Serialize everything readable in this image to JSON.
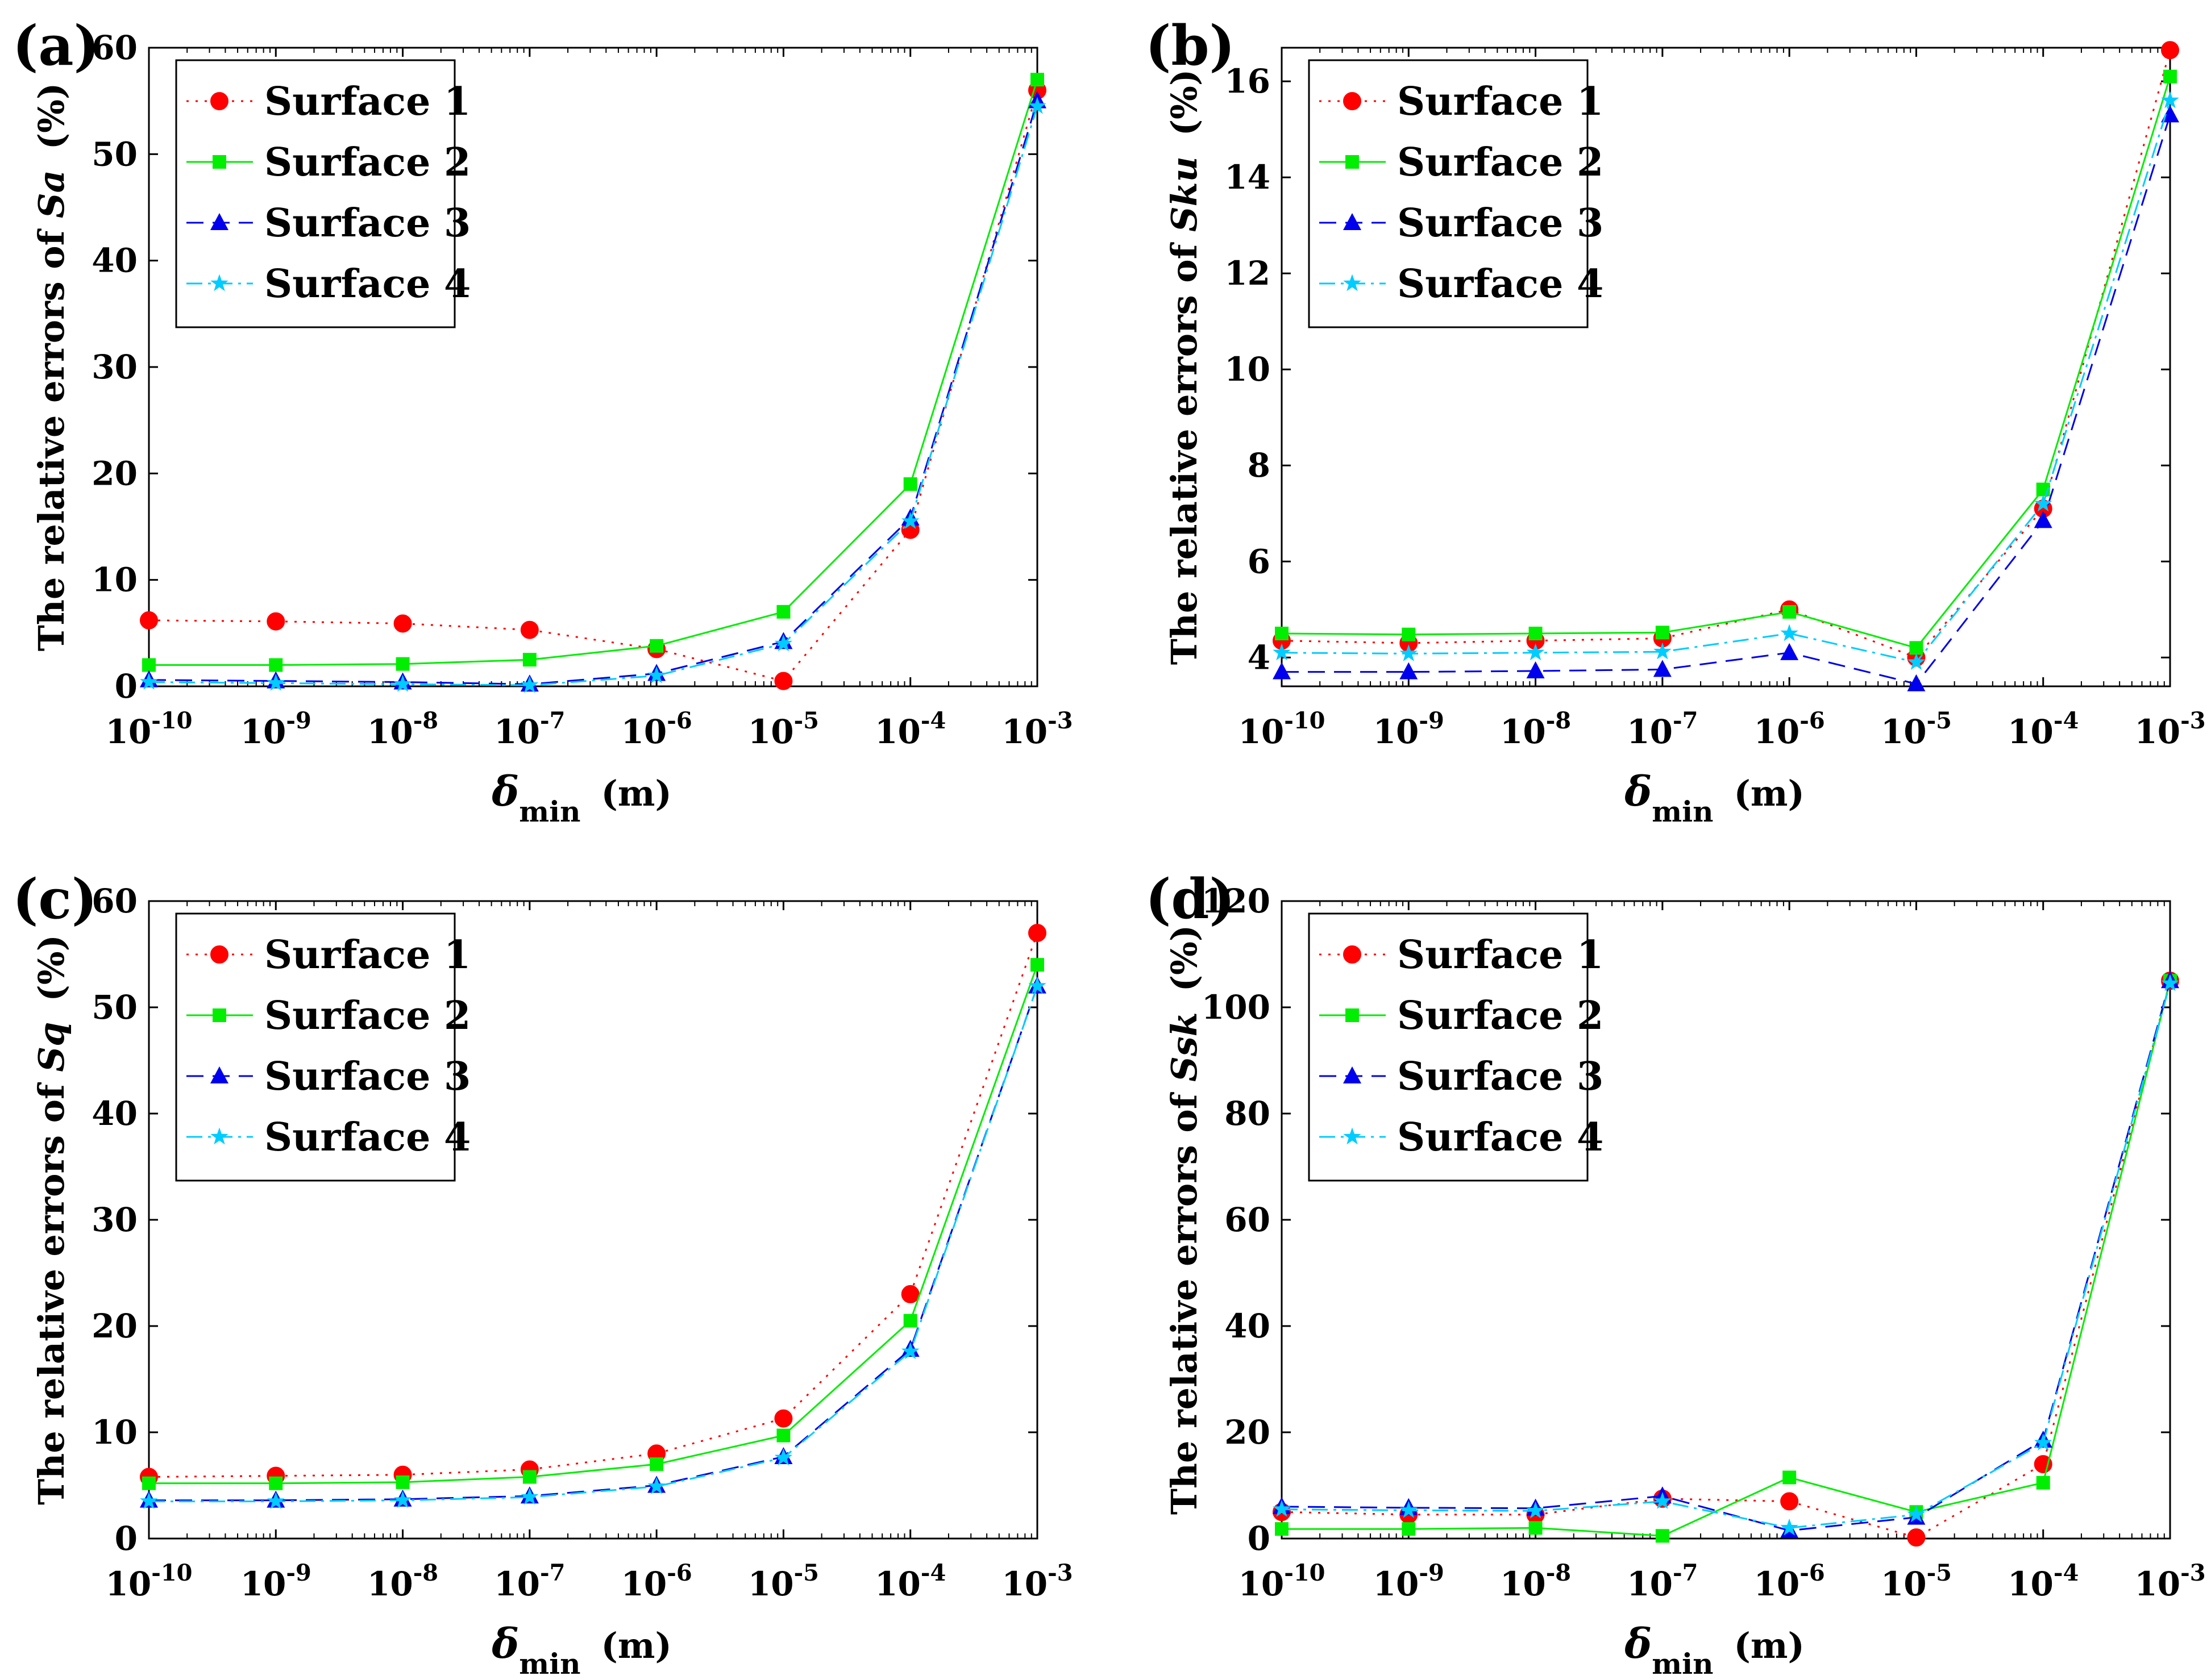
{
  "figure": {
    "description_free": true
  },
  "chart_data": [
    {
      "panel_label": "(a)",
      "type": "line",
      "ylabel_prefix": "The relative errors of ",
      "ylabel_var": "Sa",
      "ylabel_unit": "(%)",
      "xlabel_symbol": "δ",
      "xlabel_sub": "min",
      "xlabel_unit": "(m)",
      "x_ticks": [
        {
          "base": "10",
          "exp": "-10"
        },
        {
          "base": "10",
          "exp": "-9"
        },
        {
          "base": "10",
          "exp": "-8"
        },
        {
          "base": "10",
          "exp": "-7"
        },
        {
          "base": "10",
          "exp": "-6"
        },
        {
          "base": "10",
          "exp": "-5"
        },
        {
          "base": "10",
          "exp": "-4"
        },
        {
          "base": "10",
          "exp": "-3"
        }
      ],
      "xscale": "log",
      "x": [
        -10,
        -9,
        -8,
        -7,
        -6,
        -5,
        -4,
        -3
      ],
      "ylim": [
        0,
        60
      ],
      "y_ticks": [
        "0",
        "10",
        "20",
        "30",
        "40",
        "50",
        "60"
      ],
      "legend_position": "top-left",
      "series": [
        {
          "name": "Surface 1",
          "values": [
            6.2,
            6.1,
            5.9,
            5.3,
            3.5,
            0.5,
            14.7,
            56.0
          ]
        },
        {
          "name": "Surface 2",
          "values": [
            2.0,
            2.0,
            2.1,
            2.5,
            3.8,
            7.0,
            19.0,
            57.0
          ]
        },
        {
          "name": "Surface 3",
          "values": [
            0.6,
            0.5,
            0.4,
            0.2,
            1.2,
            4.2,
            15.8,
            55.0
          ]
        },
        {
          "name": "Surface 4",
          "values": [
            0.4,
            0.3,
            0.2,
            0.1,
            1.0,
            4.0,
            15.5,
            54.5
          ]
        }
      ]
    },
    {
      "panel_label": "(b)",
      "type": "line",
      "ylabel_prefix": "The relative errors of ",
      "ylabel_var": "Sku",
      "ylabel_unit": "(%)",
      "xlabel_symbol": "δ",
      "xlabel_sub": "min",
      "xlabel_unit": "(m)",
      "x_ticks": [
        {
          "base": "10",
          "exp": "-10"
        },
        {
          "base": "10",
          "exp": "-9"
        },
        {
          "base": "10",
          "exp": "-8"
        },
        {
          "base": "10",
          "exp": "-7"
        },
        {
          "base": "10",
          "exp": "-6"
        },
        {
          "base": "10",
          "exp": "-5"
        },
        {
          "base": "10",
          "exp": "-4"
        },
        {
          "base": "10",
          "exp": "-3"
        }
      ],
      "xscale": "log",
      "x": [
        -10,
        -9,
        -8,
        -7,
        -6,
        -5,
        -4,
        -3
      ],
      "ylim": [
        3.4,
        16.7
      ],
      "y_ticks": [
        "4",
        "6",
        "8",
        "10",
        "12",
        "14",
        "16"
      ],
      "legend_position": "top-left",
      "series": [
        {
          "name": "Surface 1",
          "values": [
            4.35,
            4.3,
            4.35,
            4.4,
            5.0,
            4.0,
            7.1,
            16.65
          ]
        },
        {
          "name": "Surface 2",
          "values": [
            4.5,
            4.48,
            4.5,
            4.52,
            4.95,
            4.2,
            7.5,
            16.1
          ]
        },
        {
          "name": "Surface 3",
          "values": [
            3.7,
            3.7,
            3.72,
            3.75,
            4.1,
            3.45,
            6.85,
            15.3
          ]
        },
        {
          "name": "Surface 4",
          "values": [
            4.1,
            4.08,
            4.1,
            4.12,
            4.5,
            3.9,
            7.2,
            15.6
          ]
        }
      ]
    },
    {
      "panel_label": "(c)",
      "type": "line",
      "ylabel_prefix": "The relative errors of ",
      "ylabel_var": "Sq",
      "ylabel_unit": "(%)",
      "xlabel_symbol": "δ",
      "xlabel_sub": "min",
      "xlabel_unit": "(m)",
      "x_ticks": [
        {
          "base": "10",
          "exp": "-10"
        },
        {
          "base": "10",
          "exp": "-9"
        },
        {
          "base": "10",
          "exp": "-8"
        },
        {
          "base": "10",
          "exp": "-7"
        },
        {
          "base": "10",
          "exp": "-6"
        },
        {
          "base": "10",
          "exp": "-5"
        },
        {
          "base": "10",
          "exp": "-4"
        },
        {
          "base": "10",
          "exp": "-3"
        }
      ],
      "xscale": "log",
      "x": [
        -10,
        -9,
        -8,
        -7,
        -6,
        -5,
        -4,
        -3
      ],
      "ylim": [
        0,
        60
      ],
      "y_ticks": [
        "0",
        "10",
        "20",
        "30",
        "40",
        "50",
        "60"
      ],
      "legend_position": "top-left",
      "series": [
        {
          "name": "Surface 1",
          "values": [
            5.8,
            5.9,
            6.0,
            6.5,
            8.0,
            11.3,
            23.0,
            57.0
          ]
        },
        {
          "name": "Surface 2",
          "values": [
            5.2,
            5.2,
            5.3,
            5.8,
            7.0,
            9.7,
            20.5,
            54.0
          ]
        },
        {
          "name": "Surface 3",
          "values": [
            3.6,
            3.6,
            3.7,
            4.0,
            5.0,
            7.7,
            17.8,
            52.0
          ]
        },
        {
          "name": "Surface 4",
          "values": [
            3.5,
            3.5,
            3.6,
            3.9,
            4.9,
            7.6,
            17.6,
            52.0
          ]
        }
      ]
    },
    {
      "panel_label": "(d)",
      "type": "line",
      "ylabel_prefix": "The relative errors of ",
      "ylabel_var": "Ssk",
      "ylabel_unit": "(%)",
      "xlabel_symbol": "δ",
      "xlabel_sub": "min",
      "xlabel_unit": "(m)",
      "x_ticks": [
        {
          "base": "10",
          "exp": "-10"
        },
        {
          "base": "10",
          "exp": "-9"
        },
        {
          "base": "10",
          "exp": "-8"
        },
        {
          "base": "10",
          "exp": "-7"
        },
        {
          "base": "10",
          "exp": "-6"
        },
        {
          "base": "10",
          "exp": "-5"
        },
        {
          "base": "10",
          "exp": "-4"
        },
        {
          "base": "10",
          "exp": "-3"
        }
      ],
      "xscale": "log",
      "x": [
        -10,
        -9,
        -8,
        -7,
        -6,
        -5,
        -4,
        -3
      ],
      "ylim": [
        0,
        120
      ],
      "y_ticks": [
        "0",
        "20",
        "40",
        "60",
        "80",
        "100",
        "120"
      ],
      "legend_position": "top-left",
      "series": [
        {
          "name": "Surface 1",
          "values": [
            5.0,
            4.5,
            4.5,
            7.5,
            7.0,
            0.2,
            14.0,
            105.0
          ]
        },
        {
          "name": "Surface 2",
          "values": [
            1.8,
            1.8,
            2.0,
            0.5,
            11.5,
            5.0,
            10.5,
            105.0
          ]
        },
        {
          "name": "Surface 3",
          "values": [
            6.0,
            5.8,
            5.7,
            8.0,
            1.5,
            4.0,
            18.5,
            105.0
          ]
        },
        {
          "name": "Surface 4",
          "values": [
            5.5,
            5.3,
            5.2,
            7.0,
            2.0,
            4.5,
            18.0,
            104.5
          ]
        }
      ]
    }
  ],
  "styles": {
    "series": [
      {
        "color": "#ff0000",
        "dash": "4 12",
        "marker": "circle"
      },
      {
        "color": "#00ee00",
        "dash": "",
        "marker": "square"
      },
      {
        "color": "#0000ee",
        "dash": "30 16",
        "marker": "triangle"
      },
      {
        "color": "#00ccff",
        "dash": "28 10 5 10",
        "marker": "star"
      }
    ]
  }
}
